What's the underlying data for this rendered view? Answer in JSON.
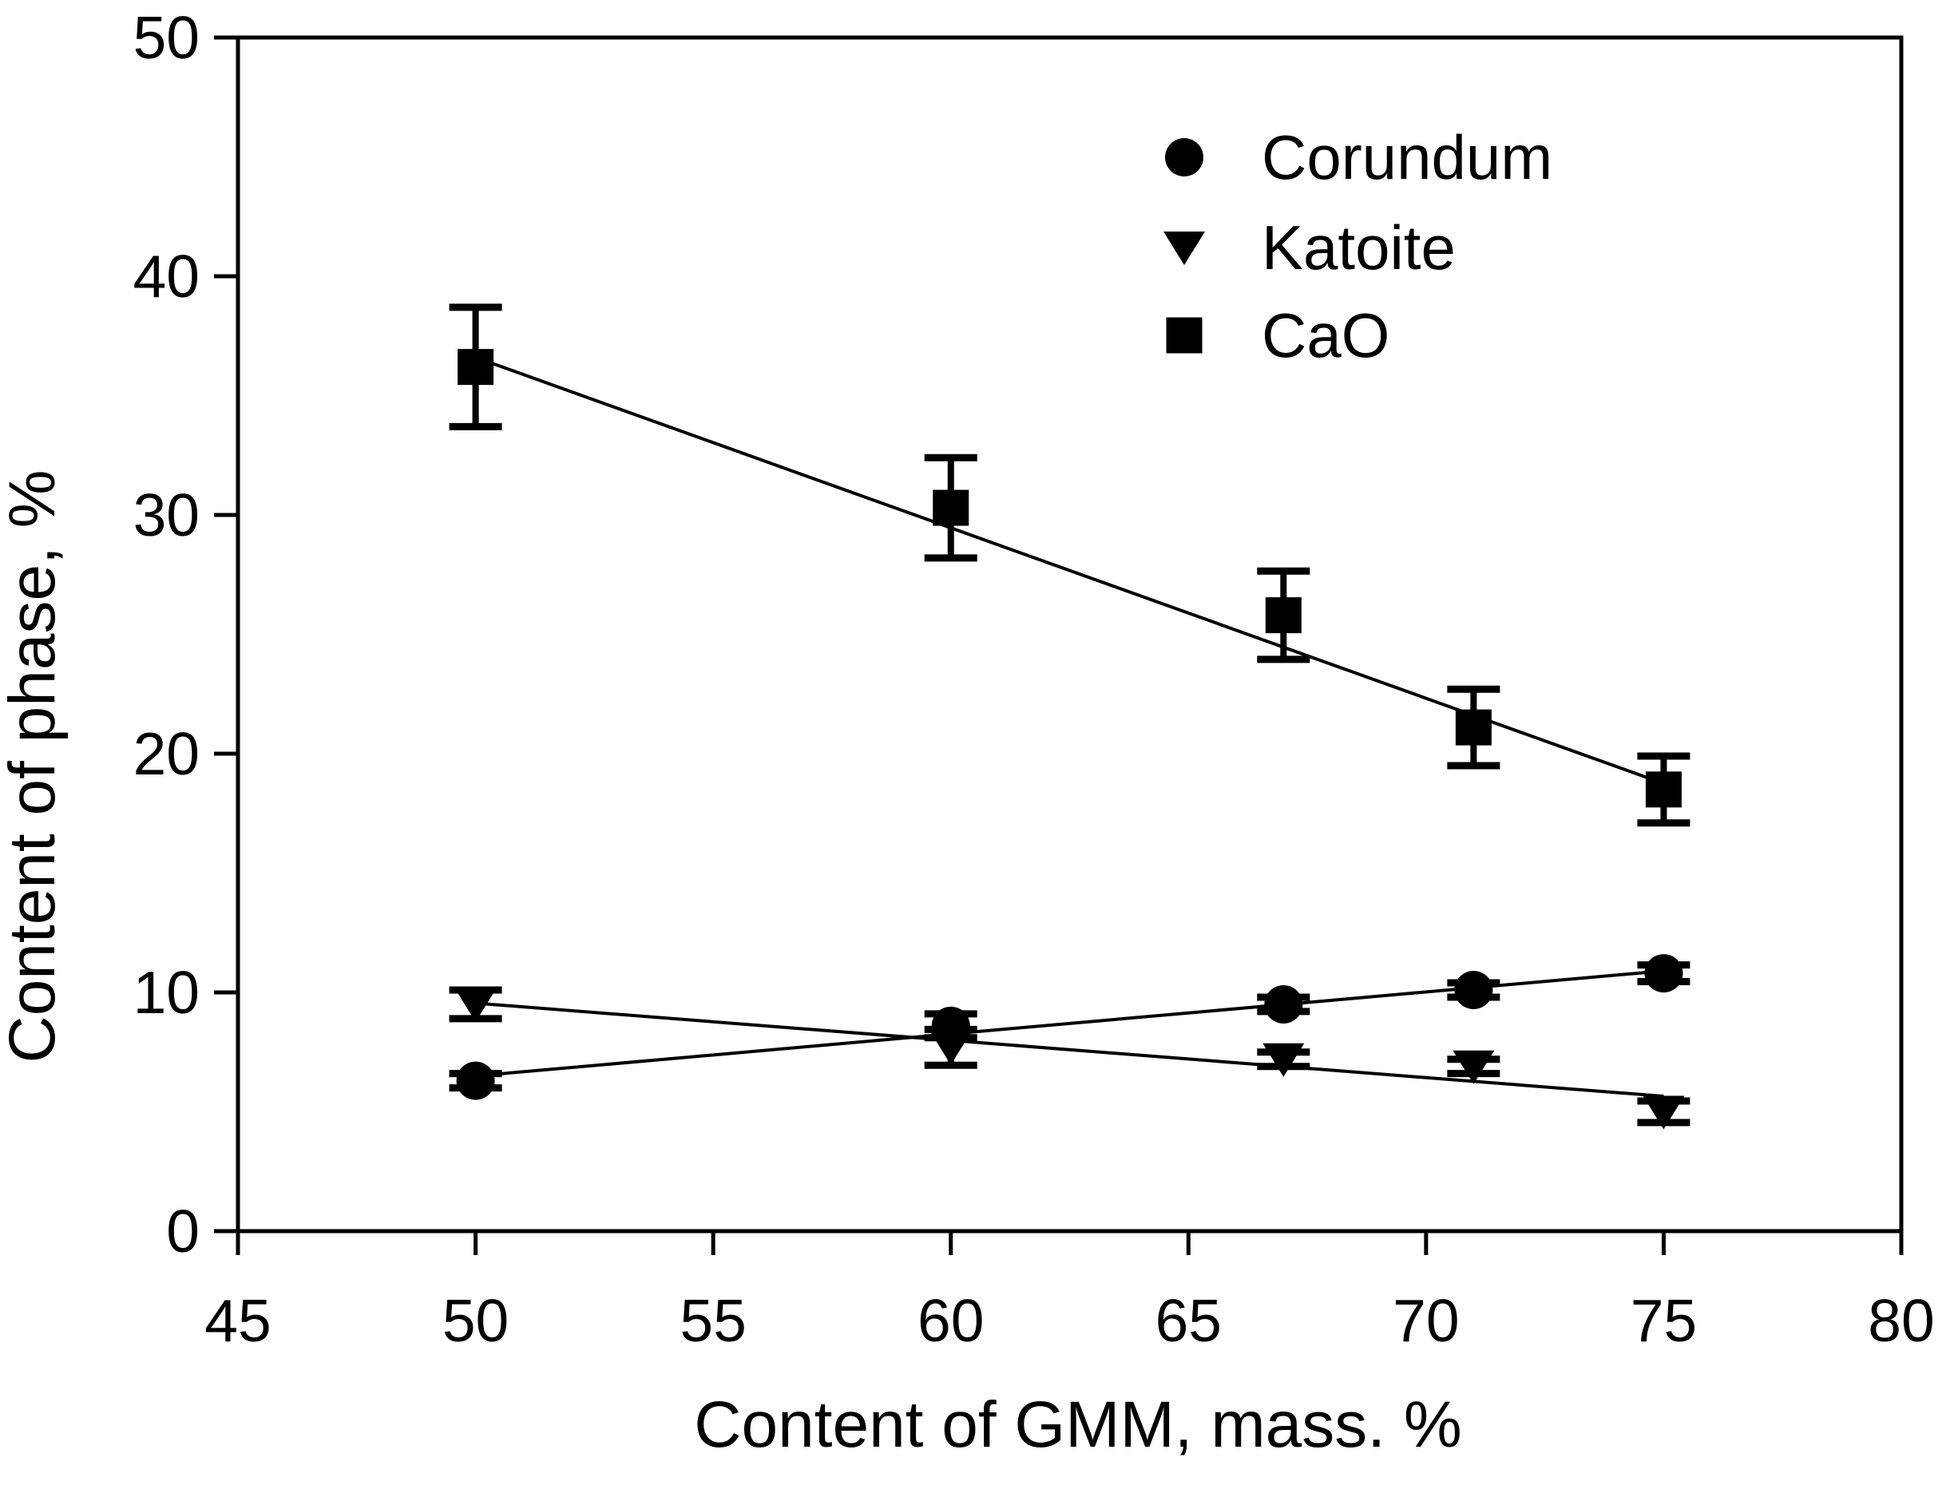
{
  "figure": {
    "background_color": "#ffffff",
    "ink_color": "#000000"
  },
  "chart_data": {
    "type": "scatter",
    "title": "",
    "xlabel": "Content of GMM, mass. %",
    "ylabel": "Content of phase, %",
    "xlim": [
      45,
      80
    ],
    "ylim": [
      0,
      50
    ],
    "xticks": [
      45,
      50,
      55,
      60,
      65,
      70,
      75,
      80
    ],
    "yticks": [
      0,
      10,
      20,
      30,
      40,
      50
    ],
    "grid": false,
    "legend_position": "upper-right-inside",
    "x": [
      50,
      60,
      67,
      71,
      75
    ],
    "series": [
      {
        "name": "Corundum",
        "marker": "circle",
        "values": [
          6.3,
          8.6,
          9.5,
          10.1,
          10.8
        ],
        "y_errors": [
          0.3,
          0.5,
          0.3,
          0.3,
          0.35
        ],
        "trend_line": {
          "x": [
            50,
            75
          ],
          "y": [
            6.5,
            10.9
          ]
        }
      },
      {
        "name": "Katoite",
        "marker": "triangle-down",
        "values": [
          9.5,
          7.7,
          7.2,
          6.9,
          5.0
        ],
        "y_errors": [
          0.6,
          0.75,
          0.3,
          0.3,
          0.45
        ],
        "trend_line": {
          "x": [
            50,
            75
          ],
          "y": [
            9.55,
            5.65
          ]
        }
      },
      {
        "name": "CaO",
        "marker": "square",
        "values": [
          36.2,
          30.3,
          25.8,
          21.1,
          18.5
        ],
        "y_errors": [
          2.5,
          2.1,
          1.85,
          1.6,
          1.4
        ],
        "trend_line": {
          "x": [
            50,
            75
          ],
          "y": [
            36.6,
            18.75
          ]
        }
      }
    ]
  },
  "legend": {
    "items": [
      {
        "label": "Corundum",
        "marker": "circle"
      },
      {
        "label": "Katoite",
        "marker": "triangle-down"
      },
      {
        "label": "CaO",
        "marker": "square"
      }
    ]
  }
}
